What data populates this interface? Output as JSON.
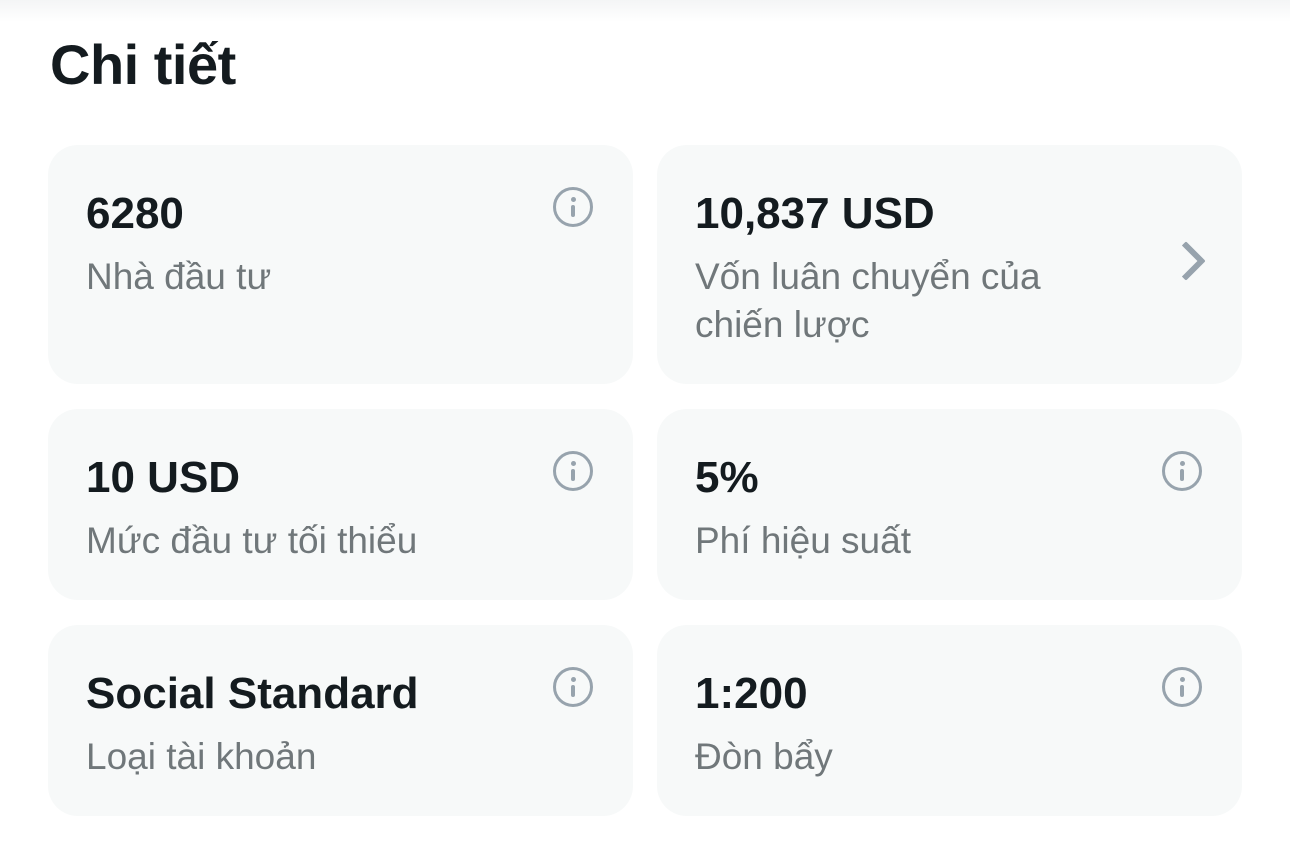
{
  "section_title": "Chi tiết",
  "cards": [
    {
      "value": "6280",
      "label": "Nhà đầu tư",
      "icon": "info-icon"
    },
    {
      "value": "10,837 USD",
      "label": "Vốn luân chuyển của chiến lược",
      "icon": "chevron-right-icon"
    },
    {
      "value": "10 USD",
      "label": "Mức đầu tư tối thiểu",
      "icon": "info-icon"
    },
    {
      "value": "5%",
      "label": "Phí hiệu suất",
      "icon": "info-icon"
    },
    {
      "value": "Social Standard",
      "label": "Loại tài khoản",
      "icon": "info-icon"
    },
    {
      "value": "1:200",
      "label": "Đòn bẩy",
      "icon": "info-icon"
    }
  ]
}
